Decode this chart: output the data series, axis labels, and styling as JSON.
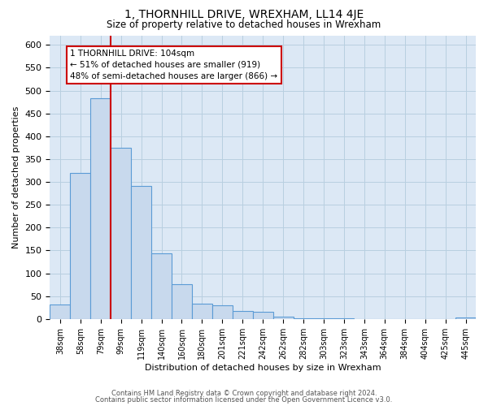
{
  "title": "1, THORNHILL DRIVE, WREXHAM, LL14 4JE",
  "subtitle": "Size of property relative to detached houses in Wrexham",
  "xlabel": "Distribution of detached houses by size in Wrexham",
  "ylabel": "Number of detached properties",
  "bar_labels": [
    "38sqm",
    "58sqm",
    "79sqm",
    "99sqm",
    "119sqm",
    "140sqm",
    "160sqm",
    "180sqm",
    "201sqm",
    "221sqm",
    "242sqm",
    "262sqm",
    "282sqm",
    "303sqm",
    "323sqm",
    "343sqm",
    "364sqm",
    "384sqm",
    "404sqm",
    "425sqm",
    "445sqm"
  ],
  "bar_heights": [
    32,
    320,
    483,
    375,
    291,
    144,
    76,
    33,
    30,
    17,
    15,
    5,
    2,
    1,
    1,
    0,
    0,
    0,
    0,
    0,
    3
  ],
  "bar_color": "#c8d9ed",
  "bar_edge_color": "#5b9bd5",
  "grid_color": "#b8cfe0",
  "background_color": "#dce8f5",
  "vline_x_idx": 3,
  "vline_color": "#cc0000",
  "annotation_title": "1 THORNHILL DRIVE: 104sqm",
  "annotation_line1": "← 51% of detached houses are smaller (919)",
  "annotation_line2": "48% of semi-detached houses are larger (866) →",
  "annotation_box_color": "#ffffff",
  "annotation_box_edge": "#cc0000",
  "footnote1": "Contains HM Land Registry data © Crown copyright and database right 2024.",
  "footnote2": "Contains public sector information licensed under the Open Government Licence v3.0.",
  "ylim": [
    0,
    620
  ],
  "yticks": [
    0,
    50,
    100,
    150,
    200,
    250,
    300,
    350,
    400,
    450,
    500,
    550,
    600
  ]
}
